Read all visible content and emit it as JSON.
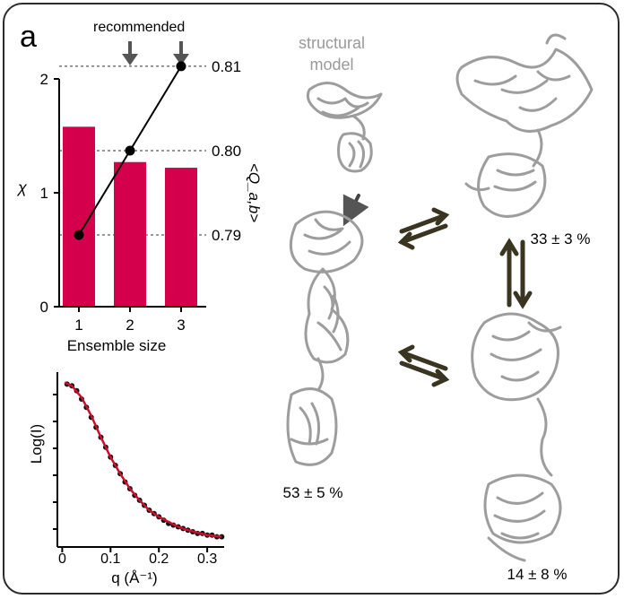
{
  "panel_label": "a",
  "recommended_label": "recommended",
  "structural_model_label": "structural\nmodel",
  "populations": [
    {
      "id": "left",
      "text": "53 ± 5 %"
    },
    {
      "id": "top-right",
      "text": "33 ± 3 %"
    },
    {
      "id": "bottom-right",
      "text": "14 ± 8 %"
    }
  ],
  "colors": {
    "bar": "#d4004b",
    "fit": "#c8102e",
    "points": "#111111",
    "arrow": "#3a3520",
    "protein": "#9a9a9a"
  },
  "chart_data": [
    {
      "type": "bar",
      "xlabel": "Ensemble size",
      "ylabel": "χ",
      "y2label": "<Q_a,b>",
      "categories": [
        "1",
        "2",
        "3"
      ],
      "bar_values": [
        1.58,
        1.27,
        1.22
      ],
      "ylim": [
        0,
        2
      ],
      "yticks": [
        "0",
        "1",
        "2"
      ],
      "line_values": [
        0.79,
        0.8,
        0.81
      ],
      "y2lim": [
        0.7815,
        0.8085
      ],
      "y2ticks": [
        "0.79",
        "0.80",
        "0.81"
      ],
      "recommended": [
        "2",
        "3"
      ],
      "grid": "dashed at right-axis ticks"
    },
    {
      "type": "scatter",
      "xlabel": "q (Å⁻¹)",
      "ylabel": "Log(I)",
      "xticks": [
        "0",
        "0.1",
        "0.2",
        "0.3"
      ],
      "xlim": [
        -0.01,
        0.335
      ],
      "series": [
        {
          "type": "points",
          "x": [
            0.01,
            0.02,
            0.03,
            0.04,
            0.05,
            0.06,
            0.07,
            0.08,
            0.09,
            0.1,
            0.11,
            0.12,
            0.13,
            0.14,
            0.15,
            0.16,
            0.17,
            0.18,
            0.19,
            0.2,
            0.21,
            0.22,
            0.23,
            0.24,
            0.25,
            0.26,
            0.27,
            0.28,
            0.29,
            0.3,
            0.31,
            0.32,
            0.33
          ],
          "y": [
            0.96,
            0.95,
            0.92,
            0.87,
            0.82,
            0.76,
            0.7,
            0.64,
            0.58,
            0.52,
            0.47,
            0.42,
            0.37,
            0.33,
            0.29,
            0.26,
            0.23,
            0.2,
            0.18,
            0.16,
            0.14,
            0.12,
            0.11,
            0.1,
            0.09,
            0.08,
            0.07,
            0.06,
            0.06,
            0.05,
            0.05,
            0.04,
            0.04
          ]
        },
        {
          "type": "fit-line",
          "x": [
            0.005,
            0.02,
            0.04,
            0.06,
            0.08,
            0.1,
            0.12,
            0.14,
            0.16,
            0.18,
            0.2,
            0.22,
            0.24,
            0.26,
            0.28,
            0.3,
            0.33
          ],
          "y": [
            0.97,
            0.95,
            0.88,
            0.77,
            0.64,
            0.52,
            0.42,
            0.33,
            0.26,
            0.2,
            0.16,
            0.13,
            0.1,
            0.08,
            0.065,
            0.05,
            0.04
          ]
        }
      ]
    }
  ]
}
